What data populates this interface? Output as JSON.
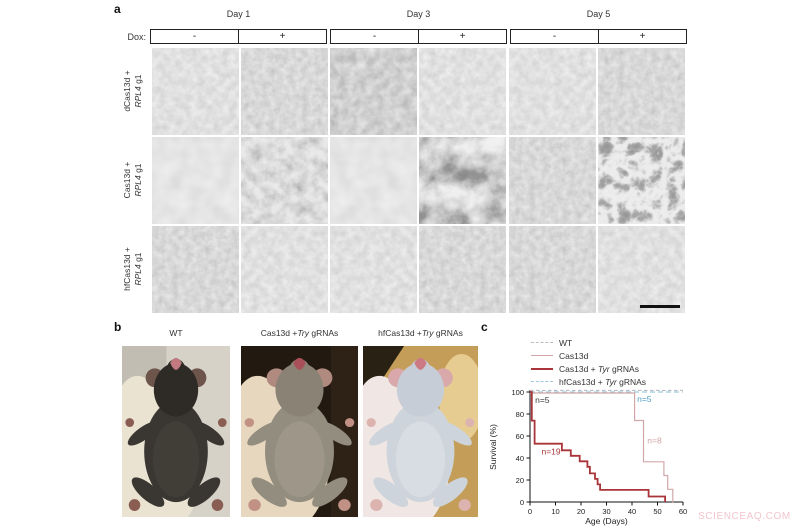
{
  "watermark": "SCIENCEAQ.COM",
  "panel_a": {
    "label": "a",
    "days": [
      "Day 1",
      "Day 3",
      "Day 5"
    ],
    "dox_label": "Dox:",
    "dox_states": [
      "-",
      "+",
      "-",
      "+",
      "-",
      "+"
    ],
    "rows": [
      {
        "line1": "dCas13d +",
        "gene": "RPL4",
        "suffix": " g1"
      },
      {
        "line1": "Cas13d +",
        "gene": "RPL4",
        "suffix": " g1"
      },
      {
        "line1": "hfCas13d +",
        "gene": "RPL4",
        "suffix": " g1"
      }
    ],
    "tiles": [
      [
        "fine-light",
        "fine-med",
        "fine-dark",
        "fine-light",
        "fine-light",
        "fine-med"
      ],
      [
        "smooth-light",
        "clump-small",
        "smooth-light",
        "clump-heavy",
        "fine-med",
        "clump-sparse"
      ],
      [
        "fine-med",
        "fine-light",
        "fine-light",
        "fine-med",
        "fine-med",
        "fine-light"
      ]
    ]
  },
  "panel_b": {
    "label": "b",
    "photos": [
      {
        "pre": "WT",
        "italic": "",
        "post": "",
        "colors": {
          "bg": "#d6d2c8",
          "bg2": "#a9a397",
          "glove": "#eae3d1",
          "body": "#3a3733",
          "belly": "#46423c",
          "head": "#2e2b27",
          "ears": "#6e554b",
          "mouth": "#c07a80",
          "feet": "#8a5d52"
        }
      },
      {
        "pre": "Cas13d +",
        "italic": "Try",
        "post": " gRNAs",
        "colors": {
          "bg": "#221911",
          "bg2": "#3a2c1c",
          "glove": "#e8d7bf",
          "body": "#938d7f",
          "belly": "#a59f90",
          "head": "#8a8375",
          "ears": "#b08a7e",
          "mouth": "#a84f58",
          "feet": "#c29186"
        }
      },
      {
        "pre": "hfCas13d +",
        "italic": "Try",
        "post": " gRNAs",
        "colors": {
          "bg": "#c49e58",
          "bg2": "#ecd49b",
          "glove": "#f0e6e3",
          "body": "#cdd4db",
          "belly": "#dde3e8",
          "head": "#c6cdd6",
          "ears": "#d9a8ab",
          "mouth": "#cc7b84",
          "feet": "#dcb3ae"
        }
      }
    ]
  },
  "panel_c": {
    "label": "c",
    "legend": [
      {
        "pre": "WT",
        "italic": "",
        "post": "",
        "color": "#b9bdbd",
        "dash": true,
        "width": 1
      },
      {
        "pre": "Cas13d",
        "italic": "",
        "post": "",
        "color": "#d2a7a9",
        "dash": false,
        "width": 1
      },
      {
        "pre": "Cas13d + ",
        "italic": "Tyr",
        "post": " gRNAs",
        "color": "#a93439",
        "dash": false,
        "width": 2
      },
      {
        "pre": "hfCas13d + ",
        "italic": "Tyr",
        "post": " gRNAs",
        "color": "#9dc9e0",
        "dash": true,
        "width": 1
      }
    ],
    "chart_data": {
      "type": "line",
      "title": "",
      "xlabel": "Age (Days)",
      "ylabel": "Survival (%)",
      "xlim": [
        0,
        60
      ],
      "ylim": [
        0,
        100
      ],
      "xticks": [
        0,
        10,
        20,
        30,
        40,
        50,
        60
      ],
      "yticks": [
        0,
        20,
        40,
        60,
        80,
        100
      ],
      "grid": false,
      "legend_position": "top-left-outside",
      "series": [
        {
          "name": "WT",
          "n": 5,
          "color": "#b9bdbd",
          "dash": true,
          "width": 1.1,
          "points": [
            [
              0,
              100
            ],
            [
              60,
              100
            ]
          ]
        },
        {
          "name": "Cas13d",
          "n": 8,
          "color": "#d2a7a9",
          "dash": false,
          "width": 1.2,
          "points": [
            [
              0,
              100
            ],
            [
              41,
              100
            ],
            [
              41,
              75
            ],
            [
              44.5,
              75
            ],
            [
              44.5,
              37.5
            ],
            [
              52.5,
              37.5
            ],
            [
              52.5,
              25
            ],
            [
              54,
              25
            ],
            [
              54,
              12.5
            ],
            [
              56,
              12.5
            ],
            [
              56,
              0
            ]
          ]
        },
        {
          "name": "Cas13d + Tyr gRNAs",
          "n": 19,
          "color": "#a93439",
          "dash": false,
          "width": 1.8,
          "points": [
            [
              0,
              100
            ],
            [
              0.7,
              100
            ],
            [
              0.7,
              74
            ],
            [
              1.8,
              74
            ],
            [
              1.8,
              53
            ],
            [
              12.5,
              53
            ],
            [
              12.5,
              47
            ],
            [
              16,
              47
            ],
            [
              16,
              42
            ],
            [
              19.5,
              42
            ],
            [
              19.5,
              37
            ],
            [
              22.5,
              37
            ],
            [
              22.5,
              32
            ],
            [
              23.5,
              32
            ],
            [
              23.5,
              26
            ],
            [
              25.5,
              26
            ],
            [
              25.5,
              21
            ],
            [
              26.5,
              21
            ],
            [
              26.5,
              16
            ],
            [
              27.5,
              16
            ],
            [
              27.5,
              11
            ],
            [
              46.5,
              11
            ],
            [
              46.5,
              5
            ],
            [
              53,
              5
            ],
            [
              53,
              0
            ]
          ]
        },
        {
          "name": "hfCas13d + Tyr gRNAs",
          "n": 5,
          "color": "#9dc9e0",
          "dash": true,
          "width": 1.2,
          "points": [
            [
              0,
              100
            ],
            [
              60,
              100
            ]
          ]
        }
      ],
      "annotations": [
        {
          "text": "n=5",
          "x": 2,
          "y": 90,
          "color": "#3a3a3a"
        },
        {
          "text": "n=19",
          "x": 4.5,
          "y": 43,
          "color": "#a93439"
        },
        {
          "text": "n=5",
          "x": 42,
          "y": 91,
          "color": "#4d9fc4"
        },
        {
          "text": "n=8",
          "x": 46,
          "y": 53,
          "color": "#cfa3a5"
        }
      ]
    }
  }
}
